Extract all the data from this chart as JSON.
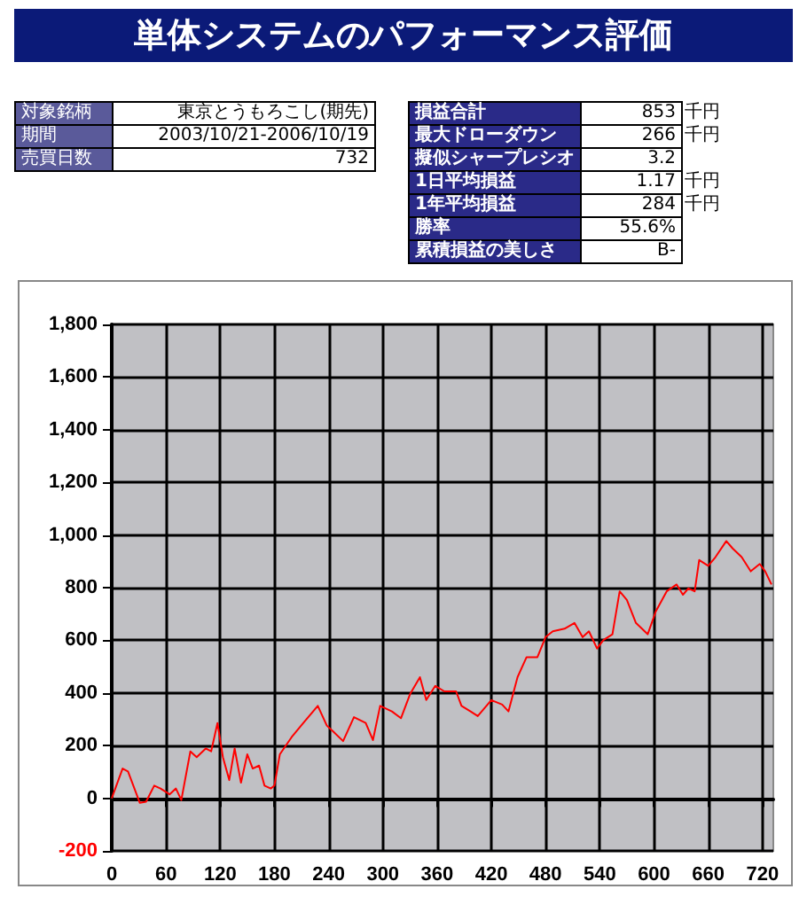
{
  "chart_data": {
    "type": "line",
    "title": "単体システムのパフォーマンス評価",
    "annotations": [
      "対象銘柄",
      "東京とうもろこし(期先)",
      "期間",
      "2003/10/21-2006/10/19",
      "売買日数",
      "732",
      "損益合計",
      "853 千円",
      "最大ドローダウン",
      "266 千円",
      "擬似シャープレシオ",
      "3.2",
      "1日平均損益",
      "1.17 千円",
      "1年平均損益",
      "284 千円",
      "勝率",
      "55.6%",
      "累積損益の美しさ",
      "B-"
    ],
    "series": [
      {
        "color": "#ff0000",
        "x": [
          0,
          12,
          18,
          31,
          38,
          47,
          54,
          64,
          71,
          77,
          87,
          94,
          104,
          110,
          117,
          123,
          130,
          136,
          143,
          150,
          156,
          163,
          169,
          176,
          180,
          186,
          199,
          212,
          228,
          238,
          245,
          256,
          268,
          281,
          289,
          297,
          310,
          320,
          330,
          341,
          348,
          358,
          368,
          381,
          387,
          397,
          405,
          420,
          432,
          439,
          449,
          459,
          471,
          480,
          488,
          501,
          512,
          521,
          528,
          537,
          544,
          554,
          562,
          570,
          580,
          593,
          602,
          614,
          625,
          632,
          638,
          645,
          650,
          660,
          668,
          680,
          687,
          697,
          707,
          717,
          723,
          730
        ],
        "values": [
          0,
          113,
          102,
          -17,
          -13,
          48,
          37,
          15,
          37,
          -7,
          178,
          156,
          189,
          178,
          286,
          156,
          69,
          189,
          59,
          167,
          113,
          124,
          48,
          37,
          48,
          167,
          232,
          286,
          351,
          276,
          254,
          217,
          308,
          286,
          221,
          351,
          330,
          304,
          395,
          460,
          373,
          427,
          406,
          406,
          351,
          330,
          312,
          373,
          356,
          330,
          460,
          536,
          536,
          612,
          634,
          644,
          666,
          612,
          634,
          569,
          601,
          623,
          786,
          753,
          666,
          623,
          710,
          786,
          812,
          773,
          797,
          786,
          905,
          883,
          916,
          977,
          949,
          916,
          862,
          890,
          862,
          812
        ]
      }
    ],
    "xlim": [
      0,
      732
    ],
    "xticks": [
      0,
      60,
      120,
      180,
      240,
      300,
      360,
      420,
      480,
      540,
      600,
      660,
      720
    ],
    "ylim": [
      -200,
      1800
    ],
    "yticks": [
      -200,
      0,
      200,
      400,
      600,
      800,
      {
        "value": 1000,
        "label": "1,000"
      },
      {
        "value": 1200,
        "label": "1,200"
      },
      {
        "value": 1400,
        "label": "1,400"
      },
      {
        "value": 1600,
        "label": "1,600"
      },
      {
        "value": 1800,
        "label": "1,800"
      }
    ],
    "grid": true,
    "marker": "none",
    "line_style": "solid"
  }
}
